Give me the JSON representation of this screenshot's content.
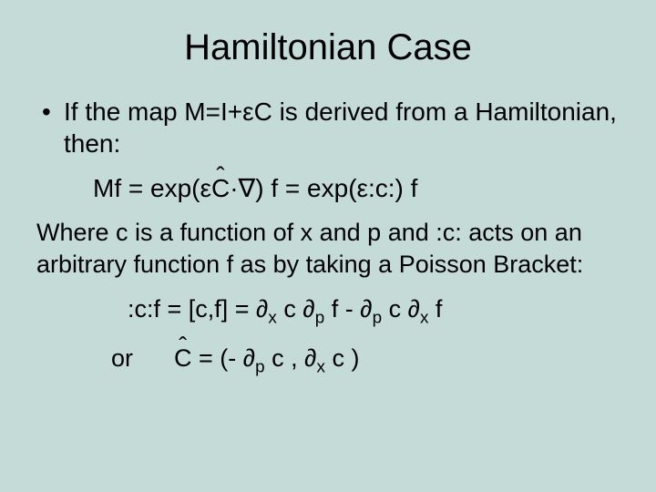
{
  "background_color": "#c5dbd8",
  "text_color": "#000000",
  "title": {
    "text": "Hamiltonian Case",
    "fontsize": 40,
    "font_family": "Arial"
  },
  "body": {
    "fontsize": 28,
    "font_family_main": "Arial",
    "font_family_alt": "Comic Sans MS",
    "line1": "If the map M=I+εC is derived from a Hamiltonian, then:",
    "line2_pre": "Mf = exp(ε",
    "line2_c": "C",
    "line2_mid": "·∇) f = exp(ε:c:) f",
    "line3": "Where c is a function of x and p and :c: acts on an arbitrary function f as by taking a Poisson Bracket:",
    "line4_pre": ":c:f = [c,f] = ∂",
    "line4_s1": "x",
    "line4_m1": " c ∂",
    "line4_s2": "p",
    "line4_m2": " f - ∂",
    "line4_s3": "p",
    "line4_m3": " c ∂",
    "line4_s4": "x",
    "line4_end": " f",
    "line5_or": "or",
    "line5_c": "C",
    "line5_pre": " =  (- ∂",
    "line5_s1": "p",
    "line5_m1": " c ,  ∂",
    "line5_s2": "x",
    "line5_end": " c )"
  }
}
